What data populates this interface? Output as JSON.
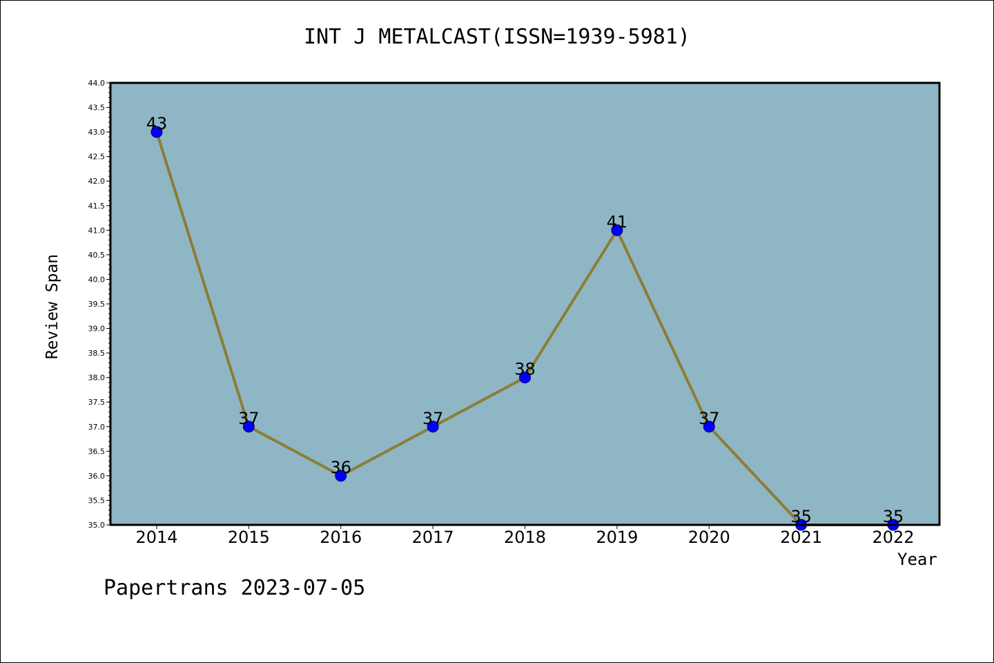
{
  "footer": "Papertrans 2023-07-05",
  "chart_data": {
    "type": "line",
    "title": "INT J METALCAST(ISSN=1939-5981)",
    "xlabel": "Year",
    "ylabel": "Review Span",
    "categories": [
      "2014",
      "2015",
      "2016",
      "2017",
      "2018",
      "2019",
      "2020",
      "2021",
      "2022"
    ],
    "values": [
      43,
      37,
      36,
      37,
      38,
      41,
      37,
      35,
      35
    ],
    "data_labels": [
      "43",
      "37",
      "36",
      "37",
      "38",
      "41",
      "37",
      "35",
      "35"
    ],
    "ylim": [
      35.0,
      44.0
    ],
    "ytick_step": 0.5,
    "grid": false,
    "colors": {
      "plot_background": "#8fb6c4",
      "line": "#8c7d33",
      "marker": "#0000ff",
      "marker_edge": "#00007a"
    }
  }
}
